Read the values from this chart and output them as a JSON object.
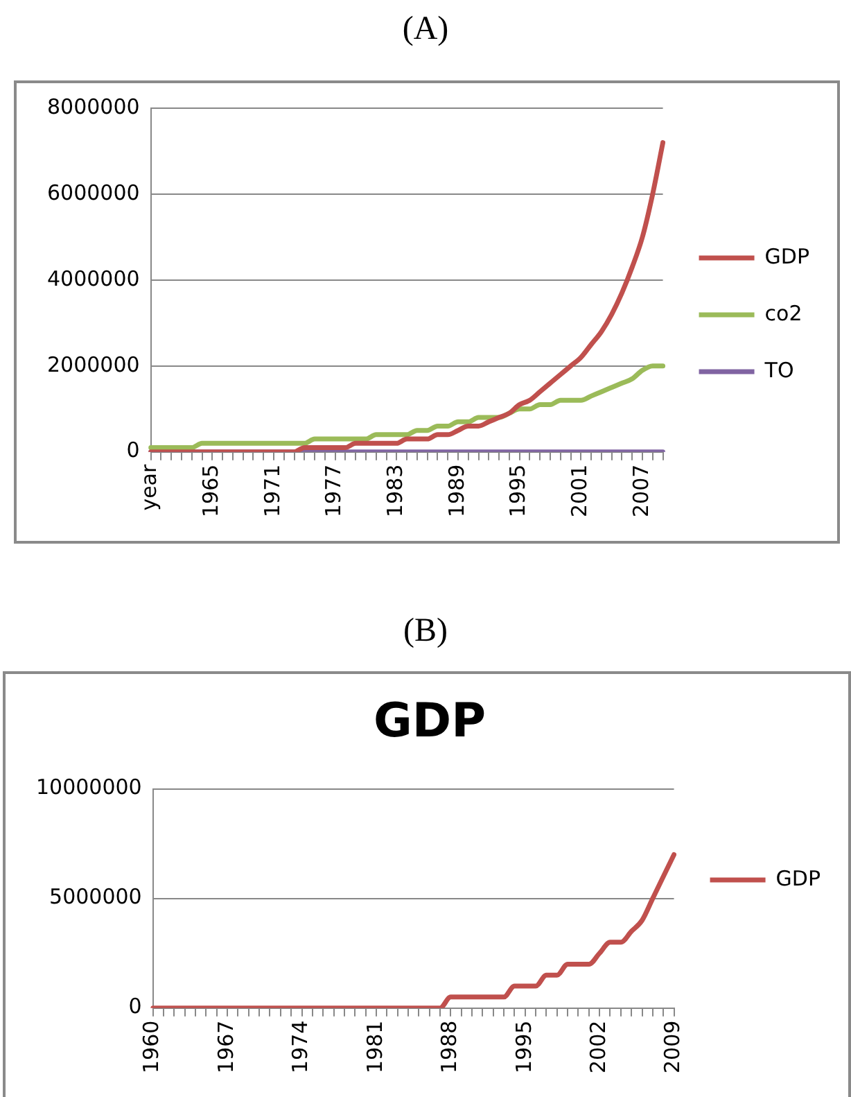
{
  "chart_data": [
    {
      "type": "line",
      "annotations": [
        "(A)"
      ],
      "categories": [
        "year",
        null,
        null,
        null,
        null,
        null,
        "1965",
        null,
        null,
        null,
        null,
        null,
        "1971",
        null,
        null,
        null,
        null,
        null,
        "1977",
        null,
        null,
        null,
        null,
        null,
        "1983",
        null,
        null,
        null,
        null,
        null,
        "1989",
        null,
        null,
        null,
        null,
        null,
        "1995",
        null,
        null,
        null,
        null,
        null,
        "2001",
        null,
        null,
        null,
        null,
        null,
        "2007",
        null,
        null
      ],
      "series": [
        {
          "name": "GDP",
          "color": "#c0504d",
          "values": [
            0,
            0,
            0,
            0,
            0,
            0,
            0,
            0,
            0,
            0,
            0,
            0,
            0,
            0,
            0,
            100000,
            100000,
            100000,
            100000,
            100000,
            200000,
            200000,
            200000,
            200000,
            200000,
            300000,
            300000,
            300000,
            400000,
            400000,
            500000,
            600000,
            600000,
            700000,
            800000,
            900000,
            1100000,
            1200000,
            1400000,
            1600000,
            1800000,
            2000000,
            2200000,
            2500000,
            2800000,
            3200000,
            3700000,
            4300000,
            5000000,
            6000000,
            7200000
          ]
        },
        {
          "name": "co2",
          "color": "#9bbb59",
          "values": [
            100000,
            100000,
            100000,
            100000,
            100000,
            200000,
            200000,
            200000,
            200000,
            200000,
            200000,
            200000,
            200000,
            200000,
            200000,
            200000,
            300000,
            300000,
            300000,
            300000,
            300000,
            300000,
            400000,
            400000,
            400000,
            400000,
            500000,
            500000,
            600000,
            600000,
            700000,
            700000,
            800000,
            800000,
            800000,
            900000,
            1000000,
            1000000,
            1100000,
            1100000,
            1200000,
            1200000,
            1200000,
            1300000,
            1400000,
            1500000,
            1600000,
            1700000,
            1900000,
            2000000,
            2000000
          ]
        },
        {
          "name": "TO",
          "color": "#8064a2",
          "values": [
            0,
            0,
            0,
            0,
            0,
            0,
            0,
            0,
            0,
            0,
            0,
            0,
            0,
            0,
            0,
            0,
            0,
            0,
            0,
            0,
            0,
            0,
            0,
            0,
            0,
            0,
            0,
            0,
            0,
            0,
            0,
            0,
            0,
            0,
            0,
            0,
            0,
            0,
            0,
            0,
            0,
            0,
            0,
            0,
            0,
            0,
            0,
            0,
            0,
            0,
            0
          ]
        }
      ],
      "ylim": [
        0,
        8000000
      ],
      "yticks": [
        0,
        2000000,
        4000000,
        6000000,
        8000000
      ],
      "grid": "y",
      "legend": "right",
      "marker": "none"
    },
    {
      "type": "line",
      "title": "GDP",
      "annotations": [
        "(B)"
      ],
      "categories": [
        "1960",
        null,
        null,
        null,
        null,
        null,
        null,
        "1967",
        null,
        null,
        null,
        null,
        null,
        null,
        "1974",
        null,
        null,
        null,
        null,
        null,
        null,
        "1981",
        null,
        null,
        null,
        null,
        null,
        null,
        "1988",
        null,
        null,
        null,
        null,
        null,
        null,
        "1995",
        null,
        null,
        null,
        null,
        null,
        null,
        "2002",
        null,
        null,
        null,
        null,
        null,
        null,
        "2009"
      ],
      "series": [
        {
          "name": "GDP",
          "color": "#c0504d",
          "values": [
            0,
            0,
            0,
            0,
            0,
            0,
            0,
            0,
            0,
            0,
            0,
            0,
            0,
            0,
            0,
            0,
            0,
            0,
            0,
            0,
            0,
            0,
            0,
            0,
            0,
            0,
            0,
            0,
            500000,
            500000,
            500000,
            500000,
            500000,
            500000,
            1000000,
            1000000,
            1000000,
            1500000,
            1500000,
            2000000,
            2000000,
            2000000,
            2500000,
            3000000,
            3000000,
            3500000,
            4000000,
            5000000,
            6000000,
            7000000
          ]
        }
      ],
      "ylim": [
        0,
        10000000
      ],
      "yticks": [
        0,
        5000000,
        10000000
      ],
      "grid": "y",
      "legend": "right",
      "marker": "none"
    }
  ]
}
